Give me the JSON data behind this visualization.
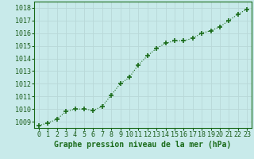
{
  "x": [
    0,
    1,
    2,
    3,
    4,
    5,
    6,
    7,
    8,
    9,
    10,
    11,
    12,
    13,
    14,
    15,
    16,
    17,
    18,
    19,
    20,
    21,
    22,
    23
  ],
  "y": [
    1008.7,
    1008.9,
    1009.2,
    1009.8,
    1010.0,
    1010.0,
    1009.9,
    1010.2,
    1011.1,
    1012.0,
    1012.5,
    1013.5,
    1014.2,
    1014.8,
    1015.2,
    1015.4,
    1015.4,
    1015.6,
    1016.0,
    1016.2,
    1016.5,
    1017.0,
    1017.5,
    1017.9
  ],
  "xlim": [
    -0.5,
    23.5
  ],
  "ylim": [
    1008.5,
    1018.5
  ],
  "yticks": [
    1009,
    1010,
    1011,
    1012,
    1013,
    1014,
    1015,
    1016,
    1017,
    1018
  ],
  "xticks": [
    0,
    1,
    2,
    3,
    4,
    5,
    6,
    7,
    8,
    9,
    10,
    11,
    12,
    13,
    14,
    15,
    16,
    17,
    18,
    19,
    20,
    21,
    22,
    23
  ],
  "xlabel": "Graphe pression niveau de la mer (hPa)",
  "line_color": "#1a6b1a",
  "marker_color": "#1a6b1a",
  "bg_color": "#c8eaea",
  "grid_color": "#b8d8d8",
  "tick_label_color": "#1a5c1a",
  "xlabel_color": "#1a6b1a",
  "xlabel_fontsize": 7.0,
  "tick_fontsize": 6.0,
  "fig_width": 3.2,
  "fig_height": 2.0,
  "dpi": 100
}
